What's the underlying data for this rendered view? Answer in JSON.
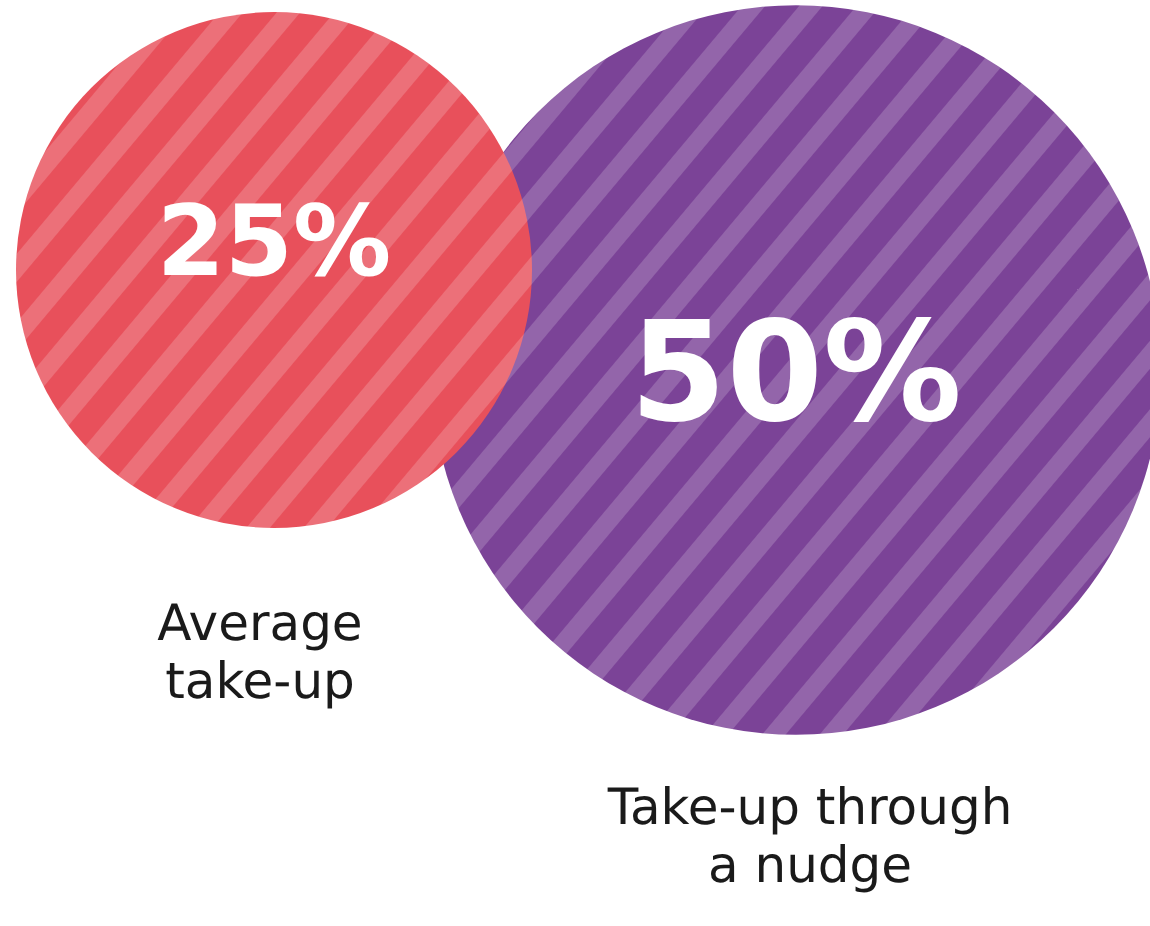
{
  "chart_data": {
    "type": "other",
    "categories": [
      "Average take-up",
      "Take-up through a nudge"
    ],
    "values": [
      25,
      50
    ],
    "value_labels": [
      "25%",
      "50%"
    ],
    "colors": [
      "#e8505b",
      "#7b4397"
    ]
  }
}
